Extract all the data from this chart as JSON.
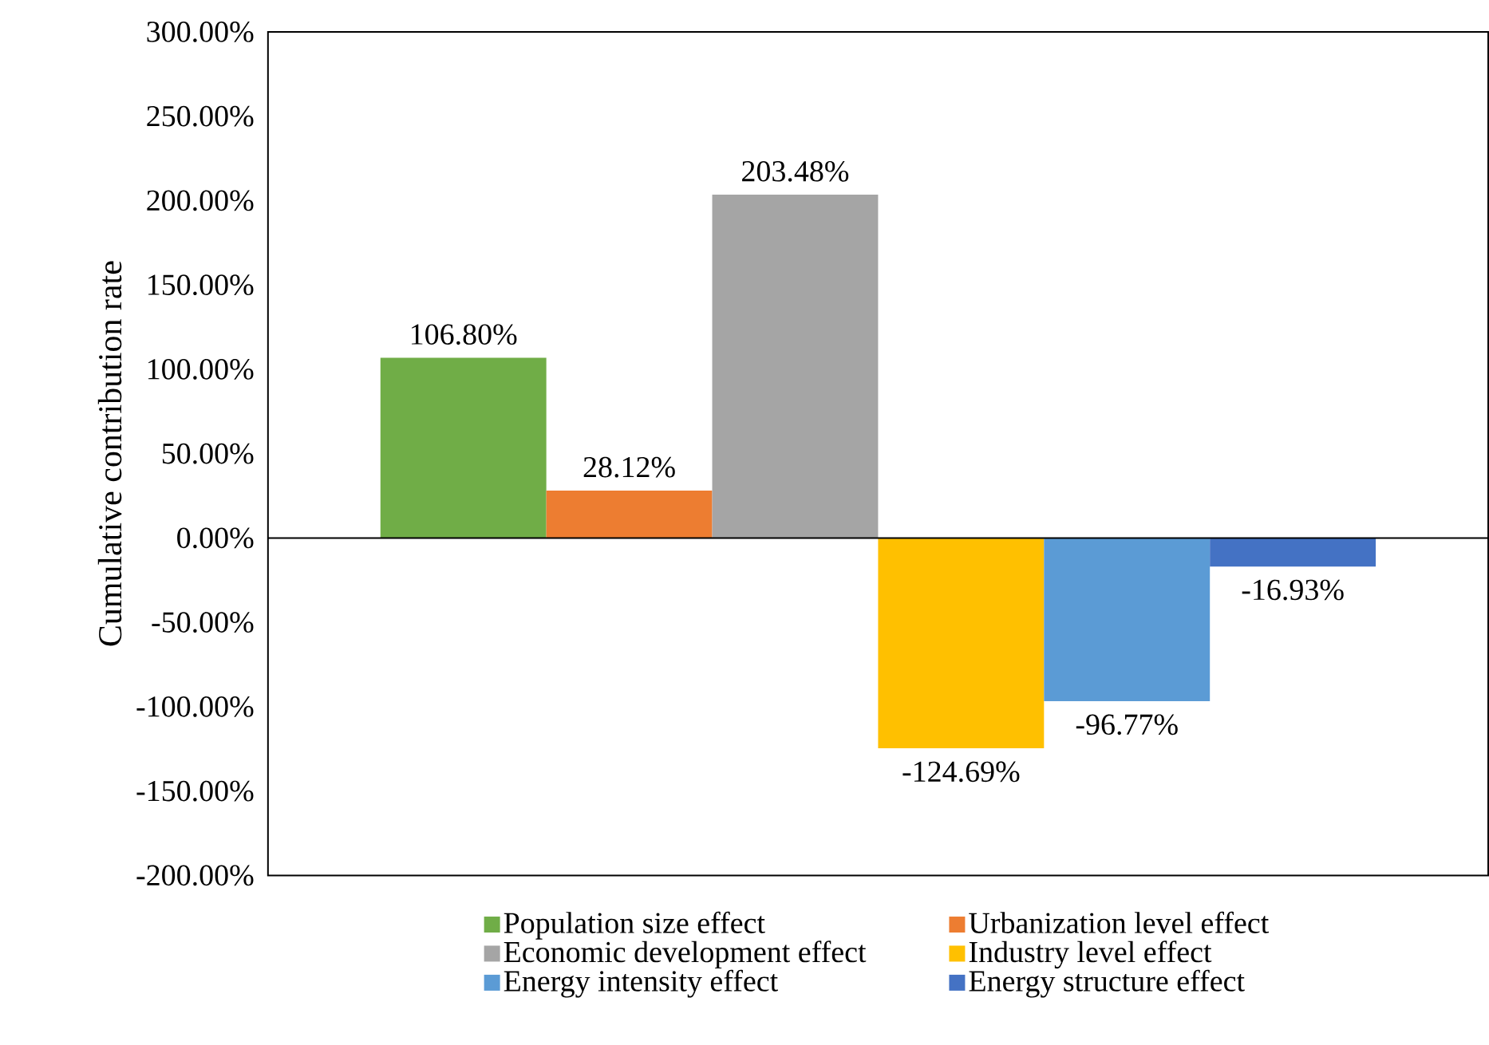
{
  "chart_data": {
    "type": "bar",
    "ylabel": "Cumulative contribution rate",
    "categories": [
      null
    ],
    "ylim": [
      -200,
      300
    ],
    "yticks": [
      {
        "value": -200,
        "label": "-200.00%"
      },
      {
        "value": -150,
        "label": "-150.00%"
      },
      {
        "value": -100,
        "label": "-100.00%"
      },
      {
        "value": -50,
        "label": "-50.00%"
      },
      {
        "value": 0,
        "label": "0.00%"
      },
      {
        "value": 50,
        "label": "50.00%"
      },
      {
        "value": 100,
        "label": "100.00%"
      },
      {
        "value": 150,
        "label": "150.00%"
      },
      {
        "value": 200,
        "label": "200.00%"
      },
      {
        "value": 250,
        "label": "250.00%"
      },
      {
        "value": 300,
        "label": "300.00%"
      }
    ],
    "series": [
      {
        "name": "Population size effect",
        "color": "#70ad47",
        "values": [
          106.8
        ],
        "value_labels": [
          "106.80%"
        ]
      },
      {
        "name": "Urbanization level effect",
        "color": "#ed7d31",
        "values": [
          28.12
        ],
        "value_labels": [
          "28.12%"
        ]
      },
      {
        "name": "Economic development effect",
        "color": "#a5a5a5",
        "values": [
          203.48
        ],
        "value_labels": [
          "203.48%"
        ]
      },
      {
        "name": "Industry level effect",
        "color": "#ffc000",
        "values": [
          -124.69
        ],
        "value_labels": [
          "-124.69%"
        ]
      },
      {
        "name": "Energy intensity effect",
        "color": "#5b9bd5",
        "values": [
          -96.77
        ],
        "value_labels": [
          "-96.77%"
        ]
      },
      {
        "name": "Energy structure effect",
        "color": "#4472c4",
        "values": [
          -16.93
        ],
        "value_labels": [
          "-16.93%"
        ]
      }
    ],
    "legend": "bottom"
  }
}
